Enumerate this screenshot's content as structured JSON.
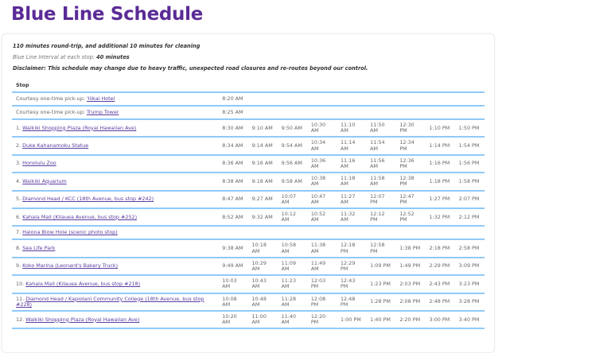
{
  "title": "Blue Line Schedule",
  "notes": {
    "round_trip": "110 minutes round-trip, and additional 10 minutes for cleaning",
    "interval_label": "Blue Line Interval at each stop:",
    "interval_value": "40 minutes",
    "disclaimer": "Disclaimer: This schedule may change due to heavy traffic, unexpected road closures and re-routes beyond our control."
  },
  "table": {
    "header": "Stop",
    "rows": [
      {
        "prefix": "Courtesy one-time pick-up: ",
        "name": "'Ilikai Hotel",
        "times": [
          "8:20 AM"
        ]
      },
      {
        "prefix": "Courtesy one-time pick-up: ",
        "name": "Trump Tower",
        "times": [
          "8:25 AM"
        ]
      },
      {
        "prefix": "1. ",
        "name": "Waikiki Shopping Plaza (Royal Hawaiian Ave)",
        "times": [
          "8:30 AM",
          "9:10 AM",
          "9:50 AM",
          "10:30 AM",
          "11:10 AM",
          "11:50 AM",
          "12:30 PM",
          "1:10 PM",
          "1:50 PM"
        ]
      },
      {
        "prefix": "2. ",
        "name": "Duke Kahanamoku Statue",
        "times": [
          "8:34 AM",
          "9:14 AM",
          "9:54 AM",
          "10:34 AM",
          "11:14 AM",
          "11:54 AM",
          "12:34 PM",
          "1:14 PM",
          "1:54 PM"
        ]
      },
      {
        "prefix": "3. ",
        "name": "Honolulu Zoo",
        "times": [
          "8:36 AM",
          "9:16 AM",
          "9:56 AM",
          "10:36 AM",
          "11:16 AM",
          "11:56 AM",
          "12:36 PM",
          "1:16 PM",
          "1:56 PM"
        ]
      },
      {
        "prefix": "4. ",
        "name": "Waikiki Aquarium",
        "times": [
          "8:38 AM",
          "9:18 AM",
          "9:58 AM",
          "10:38 AM",
          "11:18 AM",
          "11:58 AM",
          "12:38 PM",
          "1:18 PM",
          "1:58 PM"
        ]
      },
      {
        "prefix": "5. ",
        "name": "Diamond Head / KCC (18th Avenue, bus stop #242)",
        "times": [
          "8:47 AM",
          "9:27 AM",
          "10:07 AM",
          "10:47 AM",
          "11:27 AM",
          "12:07 PM",
          "12:47 PM",
          "1:27 PM",
          "2:07 PM"
        ]
      },
      {
        "prefix": "6. ",
        "name": "Kahala Mall (Kilauea Avenue, bus stop #252)",
        "times": [
          "8:52 AM",
          "9:32 AM",
          "10:12 AM",
          "10:52 AM",
          "11:32 AM",
          "12:12 PM",
          "12:52 PM",
          "1:32 PM",
          "2:12 PM"
        ]
      },
      {
        "prefix": "7. ",
        "name": "Halona Blow Hole (scenic photo stop)",
        "times": []
      },
      {
        "prefix": "8. ",
        "name": "Sea Life Park",
        "times": [
          "9:38 AM",
          "10:18 AM",
          "10:58 AM",
          "11:38 AM",
          "12:18 PM",
          "12:58 PM",
          "1:38 PM",
          "2:18 PM",
          "2:58 PM"
        ]
      },
      {
        "prefix": "9. ",
        "name": "Koko Marina (Leonard's Bakery Truck)",
        "times": [
          "9:49 AM",
          "10:29 AM",
          "11:09 AM",
          "11:49 AM",
          "12:29 PM",
          "1:09 PM",
          "1:49 PM",
          "2:29 PM",
          "3:09 PM"
        ]
      },
      {
        "prefix": "10. ",
        "name": "Kahala Mall (Kilauea Avenue, bus stop #218)",
        "times": [
          "10:03 AM",
          "10:43 AM",
          "11:23 AM",
          "12:03 PM",
          "12:43 PM",
          "1:23 PM",
          "2:03 PM",
          "2:43 PM",
          "3:23 PM"
        ]
      },
      {
        "prefix": "11. ",
        "name": "Diamond Head / Kapiolani Community College (18th Avenue, bus stop #228)",
        "times": [
          "10:08 AM",
          "10:48 AM",
          "11:28 AM",
          "12:08 PM",
          "12:48 PM",
          "1:28 PM",
          "2:08 PM",
          "2:48 PM",
          "3:28 PM"
        ]
      },
      {
        "prefix": "12. ",
        "name": "Waikiki Shopping Plaza (Royal Hawaiian Ave)",
        "times": [
          "10:20 AM",
          "11:00 AM",
          "11:40 AM",
          "12:20 PM",
          "1:00 PM",
          "1:40 PM",
          "2:20 PM",
          "3:00 PM",
          "3:40 PM"
        ]
      }
    ]
  }
}
